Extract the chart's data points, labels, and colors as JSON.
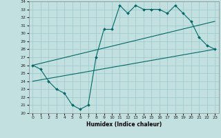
{
  "xlabel": "Humidex (Indice chaleur)",
  "bg_color": "#c2e0e0",
  "grid_color": "#9dc8c8",
  "line_color": "#006868",
  "xlim": [
    -0.5,
    23.5
  ],
  "ylim": [
    20,
    34
  ],
  "xticks": [
    0,
    1,
    2,
    3,
    4,
    5,
    6,
    7,
    8,
    9,
    10,
    11,
    12,
    13,
    14,
    15,
    16,
    17,
    18,
    19,
    20,
    21,
    22,
    23
  ],
  "yticks": [
    20,
    21,
    22,
    23,
    24,
    25,
    26,
    27,
    28,
    29,
    30,
    31,
    32,
    33,
    34
  ],
  "zigzag_x": [
    0,
    1,
    2,
    3,
    4,
    5,
    6,
    7,
    8,
    9,
    10,
    11,
    12,
    13,
    14,
    15,
    16,
    17,
    18,
    19,
    20,
    21,
    22,
    23
  ],
  "zigzag_y": [
    26.0,
    25.5,
    24.0,
    23.0,
    22.5,
    21.0,
    20.5,
    21.0,
    27.0,
    30.5,
    30.5,
    33.5,
    32.5,
    33.5,
    33.0,
    33.0,
    33.0,
    32.5,
    33.5,
    32.5,
    31.5,
    29.5,
    28.5,
    28.0
  ],
  "upper_line_x": [
    0,
    23
  ],
  "upper_line_y": [
    26.0,
    31.5
  ],
  "lower_line_x": [
    0,
    23
  ],
  "lower_line_y": [
    24.0,
    28.0
  ]
}
